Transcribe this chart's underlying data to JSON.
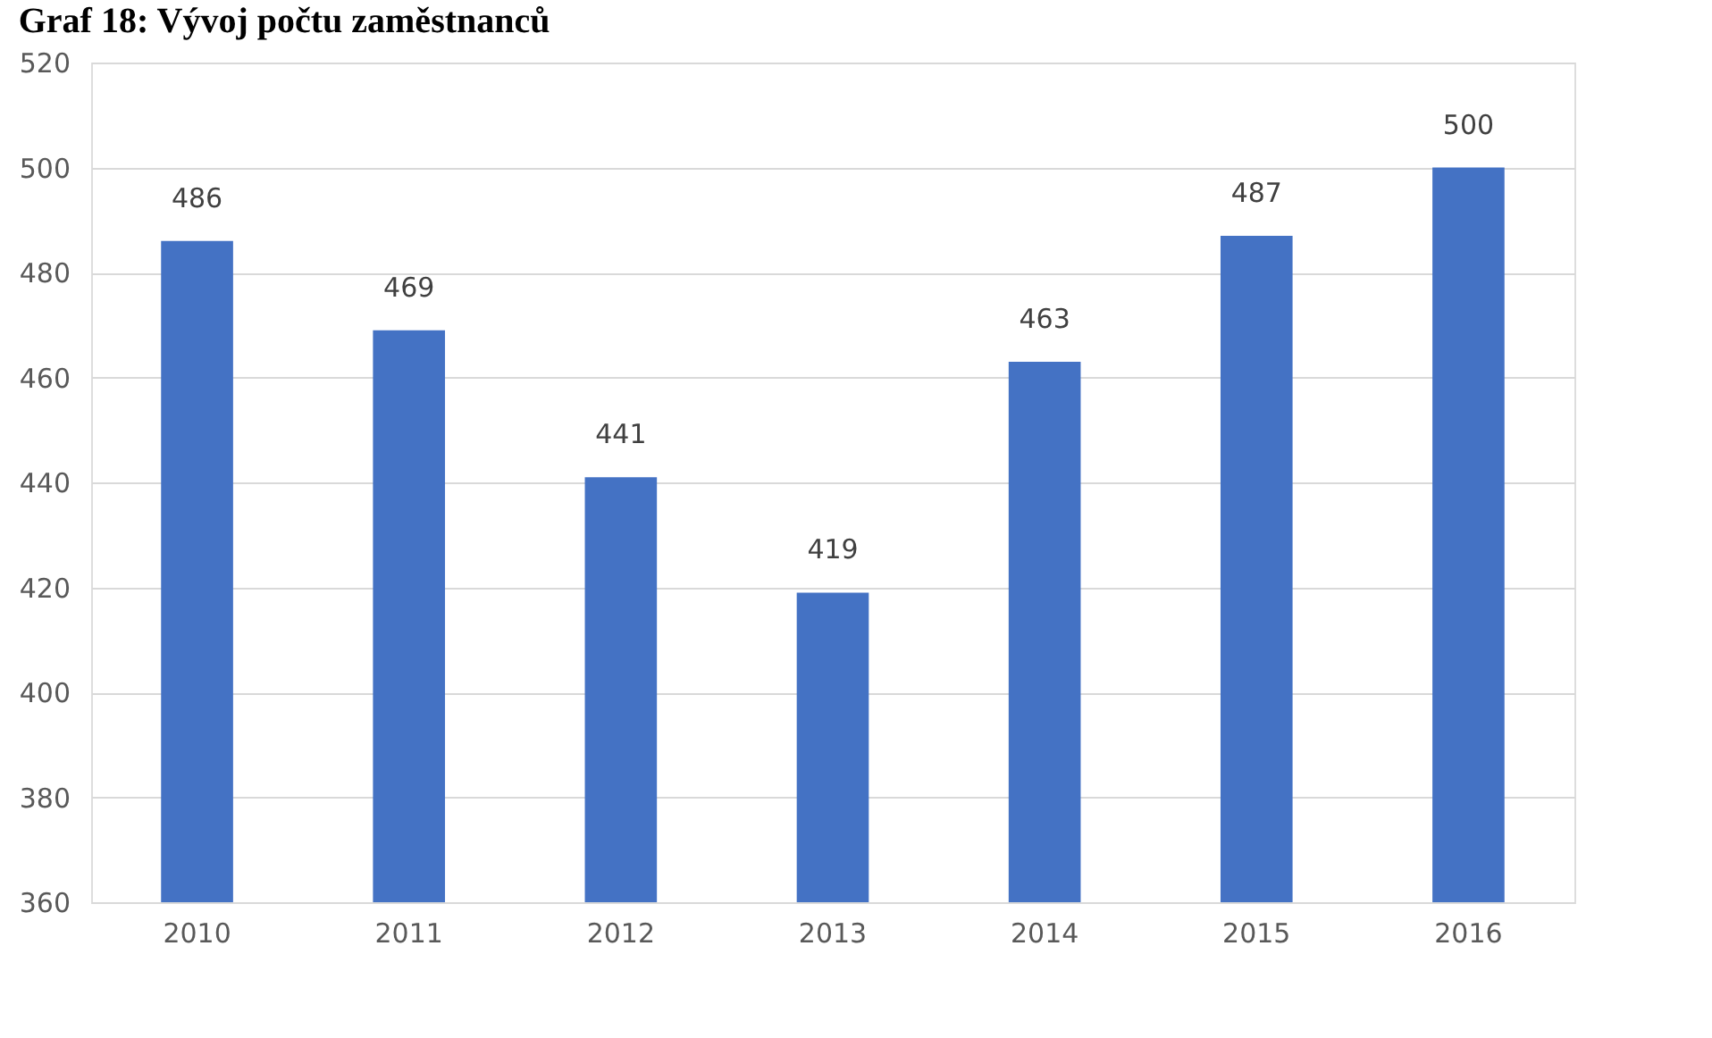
{
  "chart_data": {
    "type": "bar",
    "title": "Graf 18: Vývoj počtu zaměstnanců",
    "categories": [
      "2010",
      "2011",
      "2012",
      "2013",
      "2014",
      "2015",
      "2016"
    ],
    "values": [
      486,
      469,
      441,
      419,
      463,
      487,
      500
    ],
    "color": "#4472c4",
    "ylim": [
      360,
      520
    ],
    "yticks": [
      360,
      380,
      400,
      420,
      440,
      460,
      480,
      500,
      520
    ],
    "grid": "y",
    "data_labels": true
  }
}
